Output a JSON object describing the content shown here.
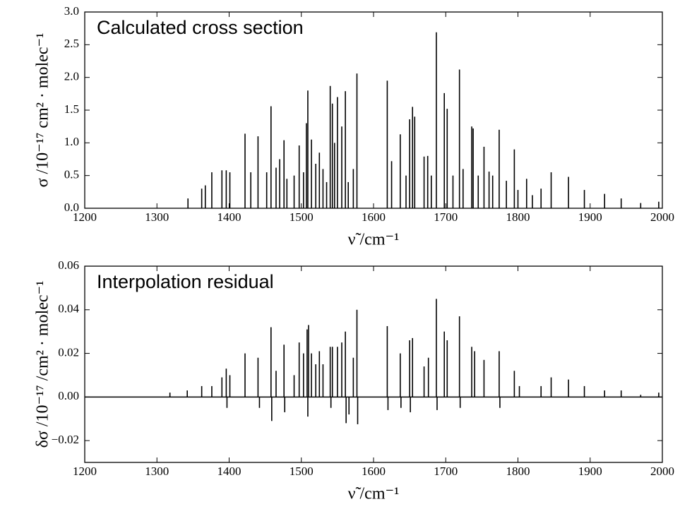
{
  "chart_data": [
    {
      "type": "stem",
      "annotation": "Calculated cross section",
      "xlabel": "ν̃ /cm⁻¹",
      "ylabel": "σ /10⁻¹⁷ cm² · molec⁻¹",
      "color": "#000000",
      "x": [
        1343,
        1362,
        1367,
        1376,
        1390,
        1396,
        1401,
        1422,
        1430,
        1440,
        1452,
        1458,
        1465,
        1470,
        1476,
        1480,
        1490,
        1497,
        1503,
        1507,
        1509,
        1514,
        1520,
        1525,
        1530,
        1535,
        1540,
        1543,
        1546,
        1550,
        1556,
        1561,
        1565,
        1572,
        1577,
        1619,
        1625,
        1637,
        1645,
        1650,
        1654,
        1657,
        1670,
        1675,
        1680,
        1687,
        1698,
        1702,
        1710,
        1719,
        1724,
        1736,
        1738,
        1745,
        1753,
        1760,
        1765,
        1774,
        1784,
        1795,
        1800,
        1812,
        1820,
        1832,
        1846,
        1870,
        1892,
        1920,
        1943,
        1970,
        1995
      ],
      "values": [
        0.15,
        0.3,
        0.35,
        0.55,
        0.58,
        0.58,
        0.55,
        1.14,
        0.55,
        1.1,
        0.55,
        1.56,
        0.62,
        0.75,
        1.04,
        0.45,
        0.5,
        0.96,
        0.55,
        1.3,
        1.8,
        1.05,
        0.68,
        0.85,
        0.6,
        0.4,
        1.87,
        1.6,
        1.0,
        1.7,
        1.25,
        1.79,
        0.4,
        0.6,
        2.06,
        1.95,
        0.72,
        1.13,
        0.5,
        1.36,
        1.55,
        1.4,
        0.79,
        0.8,
        0.5,
        2.69,
        1.76,
        1.52,
        0.5,
        2.12,
        0.6,
        1.25,
        1.22,
        0.5,
        0.94,
        0.56,
        0.5,
        1.2,
        0.42,
        0.9,
        0.28,
        0.45,
        0.2,
        0.3,
        0.55,
        0.48,
        0.28,
        0.22,
        0.15,
        0.08,
        0.1
      ],
      "xlim": [
        1200,
        2000
      ],
      "xticks": [
        1200,
        1300,
        1400,
        1500,
        1600,
        1700,
        1800,
        1900,
        2000
      ],
      "ylim": [
        0,
        3
      ],
      "yticks": [
        {
          "value": 0,
          "label": "0.0"
        },
        {
          "value": 0.5,
          "label": "0.5"
        },
        {
          "value": 1,
          "label": "1.0"
        },
        {
          "value": 1.5,
          "label": "1.5"
        },
        {
          "value": 2,
          "label": "2.0"
        },
        {
          "value": 2.5,
          "label": "2.5"
        },
        {
          "value": 3,
          "label": "3.0"
        }
      ]
    },
    {
      "type": "stem",
      "annotation": "Interpolation residual",
      "xlabel": "ν̃ /cm⁻¹",
      "ylabel": "δσ /10⁻¹⁷ /cm² · molec⁻¹",
      "color": "#000000",
      "zero_line": true,
      "x": [
        1318,
        1342,
        1362,
        1376,
        1390,
        1396,
        1397,
        1401,
        1422,
        1440,
        1442,
        1458,
        1459,
        1465,
        1476,
        1477,
        1490,
        1497,
        1503,
        1508,
        1509,
        1510,
        1514,
        1520,
        1525,
        1530,
        1540,
        1541,
        1543,
        1550,
        1556,
        1561,
        1562,
        1566,
        1572,
        1577,
        1578,
        1619,
        1620,
        1637,
        1638,
        1650,
        1651,
        1654,
        1670,
        1676,
        1687,
        1688,
        1698,
        1702,
        1719,
        1720,
        1736,
        1740,
        1753,
        1774,
        1775,
        1795,
        1802,
        1832,
        1846,
        1870,
        1892,
        1920,
        1943,
        1970,
        1995
      ],
      "values": [
        0.002,
        0.003,
        0.005,
        0.005,
        0.009,
        0.013,
        -0.005,
        0.01,
        0.02,
        0.018,
        -0.005,
        0.032,
        -0.011,
        0.012,
        0.024,
        -0.007,
        0.01,
        0.025,
        0.02,
        0.031,
        -0.009,
        0.033,
        0.02,
        0.015,
        0.021,
        0.015,
        0.023,
        -0.005,
        0.023,
        0.023,
        0.025,
        0.03,
        -0.012,
        -0.008,
        0.018,
        0.04,
        -0.0125,
        0.0325,
        -0.006,
        0.02,
        -0.005,
        0.026,
        -0.007,
        0.027,
        0.014,
        0.018,
        0.045,
        -0.006,
        0.03,
        0.026,
        0.037,
        -0.005,
        0.023,
        0.021,
        0.017,
        0.021,
        -0.005,
        0.012,
        0.005,
        0.005,
        0.009,
        0.008,
        0.005,
        0.003,
        0.003,
        0.001,
        0.002
      ],
      "xlim": [
        1200,
        2000
      ],
      "xticks": [
        1200,
        1300,
        1400,
        1500,
        1600,
        1700,
        1800,
        1900,
        2000
      ],
      "ylim": [
        -0.03,
        0.06
      ],
      "yticks": [
        {
          "value": -0.02,
          "label": "−0.02"
        },
        {
          "value": 0,
          "label": "0.00"
        },
        {
          "value": 0.02,
          "label": "0.02"
        },
        {
          "value": 0.04,
          "label": "0.04"
        },
        {
          "value": 0.06,
          "label": "0.06"
        }
      ]
    }
  ]
}
